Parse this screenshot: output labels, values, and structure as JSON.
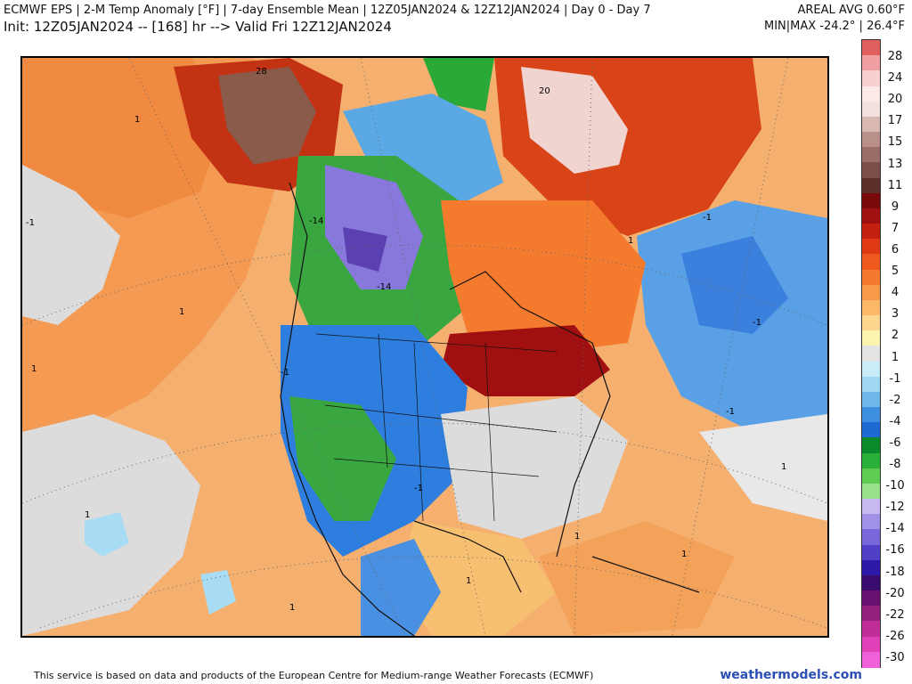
{
  "header": {
    "title_left": "ECMWF EPS | 2-M Temp Anomaly [°F] | 7-day Ensemble Mean | 12Z05JAN2024 & 12Z12JAN2024 | Day 0 - Day 7",
    "subtitle_left": "Init: 12Z05JAN2024 -- [168] hr --> Valid Fri 12Z12JAN2024",
    "title_right": "AREAL AVG 0.60°F",
    "subtitle_right": "MIN|MAX -24.2° | 26.4°F"
  },
  "colorbar": {
    "labels": [
      "28",
      "24",
      "20",
      "17",
      "15",
      "13",
      "11",
      "9",
      "7",
      "6",
      "5",
      "4",
      "3",
      "2",
      "1",
      "-1",
      "-2",
      "-4",
      "-6",
      "-8",
      "-10",
      "-12",
      "-14",
      "-16",
      "-18",
      "-20",
      "-22",
      "-26",
      "-30"
    ],
    "colors": [
      "#e06060",
      "#f0a0a0",
      "#f8d0d0",
      "#fde8e8",
      "#f4e0dc",
      "#d8b8b0",
      "#b89088",
      "#9a6e66",
      "#7a5048",
      "#5a3028",
      "#7a0a0a",
      "#a01010",
      "#c42010",
      "#e03a14",
      "#ee5a1e",
      "#f47a2e",
      "#f89a48",
      "#fbb868",
      "#fdd690",
      "#fdf3b0",
      "#e4e4e4",
      "#c8ecf8",
      "#a0d8f4",
      "#70b8ec",
      "#3e8ee0",
      "#1c6ad2",
      "#0a8a2a",
      "#28b038",
      "#5ecc50",
      "#98e08a",
      "#c8b8f0",
      "#a090e8",
      "#7868dc",
      "#5040c8",
      "#2e1aa8",
      "#3a0c70",
      "#6a1070",
      "#94207e",
      "#c02c98",
      "#e040b8",
      "#f060d8"
    ]
  },
  "map": {
    "contour_labels": [
      "28",
      "20",
      "-14",
      "-14",
      "1",
      "-1",
      "1",
      "1",
      "1",
      "-1",
      "-1",
      "1",
      "-1",
      "1",
      "-1",
      "1",
      "-1",
      "1",
      "1",
      "1"
    ]
  },
  "footer": {
    "attribution": "This service is based on data and products of the European Centre for Medium-range Weather Forecasts (ECMWF)",
    "site": "weathermodels.com"
  }
}
